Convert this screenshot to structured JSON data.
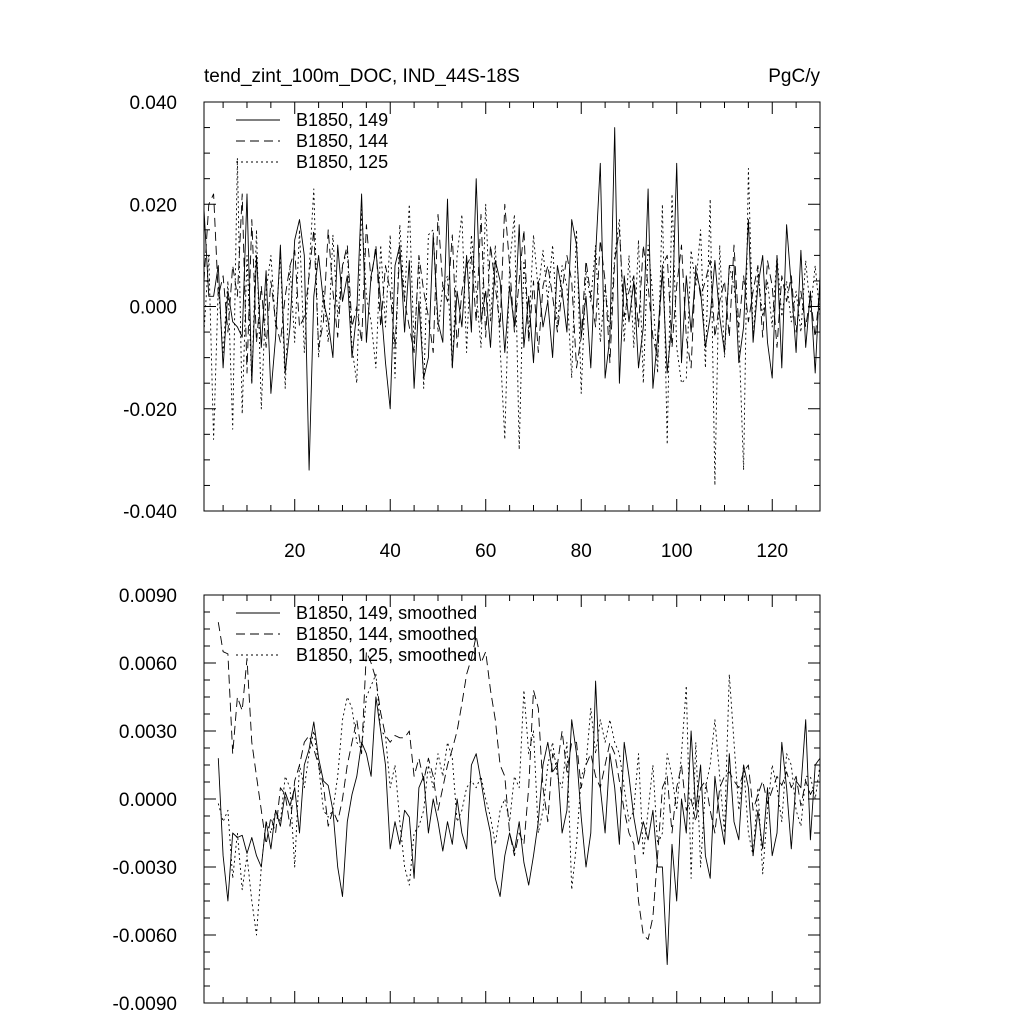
{
  "chart_data": [
    {
      "type": "line",
      "title": "tend_zint_100m_DOC, IND_44S-18S",
      "units": "PgC/y",
      "xlabel": "",
      "ylabel": "",
      "xlim": [
        1,
        130
      ],
      "ylim": [
        -0.04,
        0.04
      ],
      "x_ticks": [
        20,
        40,
        60,
        80,
        100,
        120
      ],
      "x_tick_labels": [
        "20",
        "40",
        "60",
        "80",
        "100",
        "120"
      ],
      "y_ticks": [
        -0.04,
        -0.02,
        0.0,
        0.02,
        0.04
      ],
      "y_tick_labels": [
        "-0.040",
        "-0.020",
        "0.000",
        "0.020",
        "0.040"
      ],
      "grid": false,
      "legend_position": "top-left",
      "series": [
        {
          "name": "B1850, 149",
          "style": "solid",
          "x_start": 1,
          "values": [
            0.019,
            0.002,
            0.002,
            0.008,
            -0.012,
            0.003,
            -0.003,
            -0.004,
            -0.006,
            0.022,
            -0.015,
            0.01,
            -0.008,
            0.007,
            -0.017,
            -0.006,
            0.012,
            -0.013,
            -0.004,
            0.013,
            0.017,
            0.01,
            -0.032,
            0.002,
            0.01,
            0.001,
            -0.003,
            -0.01,
            0.012,
            0.001,
            0.006,
            -0.01,
            -0.001,
            0.022,
            -0.007,
            0.006,
            0.011,
            0.001,
            -0.011,
            -0.02,
            0.008,
            0.012,
            -0.005,
            0.009,
            -0.016,
            0.001,
            -0.014,
            -0.01,
            0.014,
            -0.003,
            -0.007,
            0.021,
            -0.012,
            0.003,
            -0.004,
            0.01,
            -0.005,
            0.025,
            -0.003,
            0.003,
            -0.008,
            0.009,
            0.005,
            -0.009,
            0.004,
            -0.004,
            0.016,
            -0.008,
            0.002,
            -0.011,
            0.005,
            -0.004,
            0.001,
            -0.01,
            0.008,
            0.003,
            -0.005,
            0.017,
            0.012,
            -0.006,
            0.002,
            -0.012,
            0.01,
            0.028,
            -0.014,
            -0.006,
            0.035,
            -0.015,
            0.006,
            -0.003,
            0.005,
            -0.012,
            -0.004,
            0.023,
            -0.016,
            -0.006,
            0.007,
            -0.013,
            -0.003,
            0.028,
            -0.011,
            0.006,
            -0.005,
            0.007,
            0.003,
            -0.008,
            -0.002,
            0.009,
            -0.002,
            -0.009,
            0.008,
            0.008,
            -0.011,
            -0.004,
            0.017,
            -0.007,
            0.004,
            0.01,
            -0.007,
            -0.014,
            0.01,
            -0.012,
            0.016,
            0.004,
            -0.009,
            0.011,
            -0.008,
            0.003,
            -0.013,
            0.006,
            -0.009,
            0.016,
            -0.014,
            -0.001,
            0.008,
            0.003
          ]
        },
        {
          "name": "B1850, 144",
          "style": "dashed",
          "x_start": 1,
          "values": [
            0.005,
            0.02,
            0.022,
            0.002,
            0.006,
            -0.005,
            0.008,
            0.002,
            0.022,
            -0.013,
            0.017,
            -0.007,
            0.004,
            -0.008,
            0.005,
            -0.003,
            -0.007,
            0.002,
            0.008,
            0.011,
            -0.004,
            -0.002,
            0.006,
            0.015,
            -0.008,
            -0.003,
            0.015,
            0.003,
            -0.006,
            0.008,
            0.012,
            -0.004,
            0.0,
            -0.007,
            0.016,
            0.005,
            0.012,
            -0.004,
            0.008,
            0.003,
            -0.008,
            0.011,
            0.001,
            -0.004,
            -0.009,
            0.01,
            0.003,
            -0.002,
            -0.009,
            0.018,
            0.004,
            0.001,
            0.014,
            -0.008,
            0.003,
            0.008,
            0.01,
            -0.003,
            0.018,
            -0.006,
            0.012,
            0.004,
            -0.004,
            0.02,
            0.008,
            -0.005,
            0.005,
            0.015,
            -0.007,
            0.005,
            -0.009,
            0.004,
            0.008,
            0.002,
            -0.005,
            0.003,
            0.01,
            0.005,
            -0.012,
            -0.006,
            0.009,
            0.002,
            -0.004,
            0.013,
            0.005,
            -0.011,
            0.009,
            0.015,
            -0.002,
            0.003,
            0.006,
            -0.004,
            0.012,
            0.004,
            -0.006,
            -0.01,
            0.008,
            0.01,
            -0.008,
            0.004,
            0.012,
            -0.006,
            -0.012,
            0.008,
            0.002,
            0.005,
            0.009,
            -0.006,
            0.001,
            0.005,
            -0.006,
            0.012,
            -0.004,
            0.006,
            -0.003,
            0.003,
            0.008,
            -0.006,
            0.009,
            0.004,
            -0.008,
            0.006,
            0.001,
            0.006,
            -0.005,
            0.003,
            -0.004,
            0.002,
            -0.006,
            0.004,
            0.002,
            -0.004,
            0.006,
            0.004,
            0.001,
            0.004
          ]
        },
        {
          "name": "B1850, 125",
          "style": "dotted",
          "x_start": 1,
          "values": [
            -0.005,
            0.01,
            -0.026,
            0.004,
            -0.009,
            0.005,
            -0.024,
            0.029,
            -0.021,
            0.01,
            -0.015,
            0.015,
            -0.02,
            0.003,
            0.01,
            -0.004,
            0.01,
            -0.016,
            0.008,
            -0.007,
            0.015,
            -0.009,
            0.007,
            0.023,
            -0.01,
            0.003,
            -0.007,
            0.014,
            -0.002,
            0.008,
            0.011,
            -0.008,
            -0.015,
            0.019,
            0.002,
            -0.003,
            -0.012,
            0.012,
            -0.004,
            0.014,
            -0.014,
            0.016,
            0.001,
            0.02,
            -0.008,
            0.009,
            -0.016,
            0.014,
            0.015,
            -0.005,
            0.004,
            0.006,
            -0.012,
            0.01,
            0.018,
            -0.009,
            0.014,
            0.003,
            -0.008,
            0.02,
            -0.003,
            0.012,
            -0.008,
            -0.026,
            0.008,
            0.018,
            -0.028,
            0.009,
            -0.005,
            0.014,
            0.003,
            0.011,
            0.001,
            0.012,
            -0.004,
            0.008,
            0.004,
            -0.014,
            0.015,
            -0.017,
            0.007,
            0.001,
            0.012,
            -0.007,
            0.004,
            -0.005,
            0.01,
            0.017,
            -0.007,
            0.01,
            -0.008,
            0.013,
            -0.015,
            0.012,
            0.002,
            -0.013,
            0.02,
            -0.027,
            0.022,
            -0.008,
            -0.015,
            -0.014,
            0.011,
            0.004,
            0.015,
            -0.012,
            0.021,
            -0.035,
            0.012,
            -0.01,
            0.008,
            0.004,
            -0.005,
            -0.032,
            0.027,
            -0.006,
            0.007,
            -0.002,
            0.005,
            -0.004,
            0.01,
            -0.002,
            0.005,
            -0.003,
            0.003,
            -0.005,
            0.009,
            -0.001,
            0.008,
            -0.002,
            0.006,
            -0.003,
            0.011,
            -0.009,
            0.005,
            -0.002
          ]
        }
      ]
    },
    {
      "type": "line",
      "title": "",
      "xlabel": "",
      "ylabel": "",
      "xlim": [
        1,
        130
      ],
      "ylim": [
        -0.009,
        0.009
      ],
      "y_ticks": [
        -0.009,
        -0.006,
        -0.003,
        0.0,
        0.003,
        0.006,
        0.009
      ],
      "y_tick_labels": [
        "-0.0090",
        "-0.0060",
        "-0.0030",
        "0.0000",
        "0.0030",
        "0.0060",
        "0.0090"
      ],
      "x_ticks": [
        20,
        40,
        60,
        80,
        100,
        120
      ],
      "grid": false,
      "legend_position": "top-left",
      "series": [
        {
          "name": "B1850, 149, smoothed",
          "style": "solid",
          "x_start": 4,
          "values": [
            0.0018,
            -0.0025,
            -0.0045,
            -0.0015,
            -0.0017,
            -0.0016,
            -0.0024,
            -0.0017,
            -0.0025,
            -0.003,
            -0.001,
            -0.0022,
            -0.0005,
            -0.0012,
            0.0003,
            -0.0003,
            0.0005,
            -0.0015,
            0.0015,
            0.0022,
            0.0034,
            0.0018,
            0.0008,
            0.0006,
            -0.0005,
            -0.003,
            -0.0043,
            -0.001,
            0.0002,
            0.001,
            0.0025,
            0.002,
            0.001,
            0.0045,
            0.003,
            0.0015,
            -0.0022,
            -0.001,
            -0.002,
            -0.0005,
            -0.0008,
            -0.0035,
            0.0005,
            0.001,
            -0.0015,
            0.0,
            -0.001,
            -0.0023,
            -0.001,
            -0.002,
            0.0,
            -0.0015,
            -0.0022,
            0.0015,
            0.002,
            0.0008,
            -0.0005,
            -0.0015,
            -0.0035,
            -0.0043,
            -0.0025,
            -0.0015,
            -0.0023,
            -0.001,
            -0.0028,
            -0.0038,
            -0.0025,
            -0.001,
            0.0015,
            0.0025,
            0.0012,
            0.0015,
            -0.0015,
            -0.0005,
            0.0035,
            0.002,
            -0.0008,
            -0.003,
            -0.0015,
            0.0052,
            0.0005,
            -0.0015,
            0.002,
            0.0005,
            -0.002,
            0.0025,
            0.001,
            -0.0008,
            -0.002,
            -0.001,
            -0.0018,
            -0.0005,
            -0.003,
            -0.003,
            -0.0073,
            -0.002,
            -0.0045,
            0.0,
            -0.0015,
            0.003,
            -0.0005,
            0.0015,
            -0.0025,
            -0.0035,
            0.001,
            -0.0008,
            -0.002,
            0.002,
            -0.001,
            -0.0018,
            0.0015,
            0.0005,
            -0.0025,
            -0.0005,
            -0.0022,
            0.0005,
            -0.0025,
            -0.0015,
            0.0025,
            0.0005,
            -0.0022,
            0.0008,
            0.0005,
            0.0035,
            -0.0018,
            0.0015,
            0.0018,
            0.002
          ]
        },
        {
          "name": "B1850, 144, smoothed",
          "style": "dashed",
          "x_start": 4,
          "values": [
            0.0078,
            0.0065,
            0.0064,
            0.002,
            0.0045,
            0.0039,
            0.0062,
            0.0025,
            0.001,
            -0.0005,
            -0.002,
            -0.0008,
            -0.0015,
            0.0005,
            0.0002,
            -0.0012,
            0.0008,
            0.0015,
            0.0025,
            0.0028,
            0.0022,
            0.0015,
            0.0006,
            -0.0012,
            -0.0005,
            -0.001,
            0.0,
            0.0015,
            0.0025,
            0.0035,
            0.002,
            0.0065,
            0.006,
            0.0053,
            0.0038,
            0.0028,
            0.0025,
            0.0028,
            0.0027,
            0.0027,
            0.003,
            0.001,
            0.0018,
            0.0008,
            0.0018,
            0.001,
            -0.0005,
            0.0005,
            0.0015,
            0.0022,
            0.003,
            0.0042,
            0.0055,
            0.0062,
            0.0072,
            0.006,
            0.0065,
            0.0048,
            0.0035,
            0.0015,
            0.001,
            -0.0015,
            -0.0025,
            -0.0015,
            -0.002,
            0.0005,
            0.0048,
            0.004,
            0.0005,
            -0.001,
            0.002,
            0.0015,
            0.003,
            0.0012,
            0.0025,
            0.0025,
            0.0005,
            0.0015,
            0.002,
            0.001,
            0.0005,
            0.0015,
            0.0025,
            0.002,
            0.0008,
            -0.0005,
            -0.0015,
            -0.002,
            -0.0045,
            -0.006,
            -0.0062,
            -0.0052,
            -0.0025,
            0.0005,
            0.001,
            -0.0015,
            0.0005,
            0.0015,
            -0.0005,
            0.0,
            -0.001,
            0.0005,
            0.0008,
            -0.0005,
            -0.0015,
            0.0005,
            0.001,
            0.0012,
            0.0008,
            0.0005,
            0.0012,
            0.0015,
            -0.0005,
            0.0002,
            0.0008,
            -0.0002,
            0.0004,
            0.001,
            0.0006,
            0.0012,
            0.0005,
            0.001,
            -0.0003,
            0.0008,
            0.0002,
            0.0006
          ]
        },
        {
          "name": "B1850, 125, smoothed",
          "style": "dotted",
          "x_start": 4,
          "values": [
            -0.0002,
            -0.001,
            -0.0005,
            -0.0035,
            -0.0015,
            -0.004,
            -0.0025,
            -0.0045,
            -0.006,
            -0.003,
            -0.001,
            -0.0015,
            -0.0005,
            -0.001,
            0.001,
            0.0005,
            -0.003,
            0.0015,
            0.0005,
            0.002,
            0.003,
            0.0015,
            -0.0005,
            -0.0008,
            -0.0005,
            0.001,
            0.0035,
            0.0045,
            0.004,
            0.0025,
            0.0022,
            0.0045,
            0.005,
            0.0055,
            0.003,
            0.0028,
            0.0005,
            0.0015,
            -0.001,
            -0.003,
            -0.0038,
            -0.0015,
            -0.0012,
            -0.0005,
            0.0015,
            0.0005,
            0.002,
            0.001,
            0.0025,
            0.0018,
            -0.001,
            -0.0005,
            0.0005,
            0.0008,
            0.0005,
            0.001,
            0.0,
            -0.0008,
            -0.002,
            -0.0005,
            0.0,
            -0.001,
            0.001,
            0.0005,
            0.0048,
            0.002,
            0.003,
            -0.0015,
            -0.0005,
            0.0015,
            0.0025,
            0.001,
            0.0005,
            0.0025,
            -0.004,
            -0.002,
            0.001,
            0.0015,
            0.004,
            0.002,
            0.0035,
            0.0025,
            0.0035,
            0.0025,
            0.002,
            0.0005,
            -0.001,
            -0.0005,
            0.002,
            -0.0025,
            -0.0005,
            0.0015,
            -0.002,
            -0.0015,
            0.002,
            0.001,
            -0.0005,
            0.002,
            0.005,
            -0.0035,
            0.0025,
            -0.003,
            0.0005,
            0.0015,
            0.0035,
            0.001,
            -0.0015,
            0.0055,
            0.0025,
            -0.0005,
            0.0015,
            -0.0015,
            -0.0025,
            0.0005,
            -0.0033,
            -0.0005,
            0.0015,
            0.0005,
            -0.001,
            0.002,
            0.0015,
            -0.0005,
            -0.0012,
            0.001,
            0.001,
            0.0,
            0.0015,
            -0.001,
            0.0018,
            -0.0008,
            0.0012,
            -0.0005,
            0.0015,
            0.0005
          ]
        }
      ]
    }
  ]
}
